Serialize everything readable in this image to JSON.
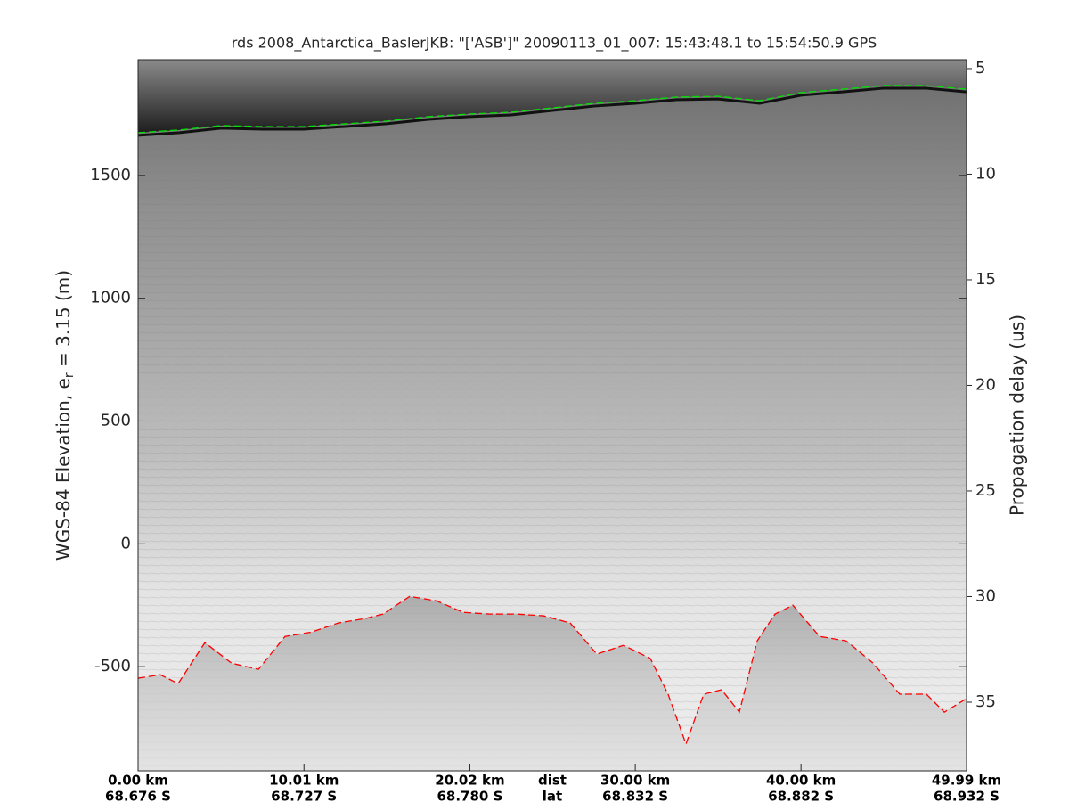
{
  "chart_data": {
    "type": "radargram",
    "title": "rds 2008_Antarctica_BaslerJKB: \"['ASB']\"  20090113_01_007: 15:43:48.1 to 15:54:50.9 GPS",
    "ylabel_parts": [
      "WGS-84 Elevation, e",
      "r",
      " = 3.15 (m)"
    ],
    "y2label": "Propagation delay (us)",
    "xlim": [
      0,
      49.99
    ],
    "xticks": [
      {
        "value": 0,
        "label": "0.00 km"
      },
      {
        "value": 10.01,
        "label": "10.01 km"
      },
      {
        "value": 20.02,
        "label": "20.02 km"
      },
      {
        "value": 30.0,
        "label": "30.00 km"
      },
      {
        "value": 40.0,
        "label": "40.00 km"
      },
      {
        "value": 49.99,
        "label": "49.99 km"
      }
    ],
    "xticklabels2": [
      "68.676 S",
      "68.727 S",
      "68.780 S",
      "68.832 S",
      "68.882 S",
      "68.932 S"
    ],
    "x_axis_labels": [
      "dist",
      "lat"
    ],
    "ylim": [
      -924,
      1971
    ],
    "yticks": [
      -500,
      0,
      500,
      1000,
      1500
    ],
    "y2lim": [
      38.25,
      4.58
    ],
    "y2ticks": [
      5,
      10,
      15,
      20,
      25,
      30,
      35
    ],
    "series": [
      {
        "color": "#00e000",
        "x": [
          0,
          2.5,
          5,
          7.5,
          10,
          12.5,
          15,
          17.5,
          20,
          22.5,
          25,
          27.5,
          30,
          32.5,
          35,
          37.5,
          40,
          42.5,
          45,
          47.5,
          49.99
        ],
        "values": [
          1674,
          1685,
          1703,
          1699,
          1699,
          1710,
          1721,
          1739,
          1750,
          1757,
          1775,
          1793,
          1804,
          1819,
          1822,
          1804,
          1837,
          1851,
          1866,
          1866,
          1851
        ]
      },
      {
        "color": "#ff0000",
        "x": [
          0,
          1.34,
          2.42,
          4.03,
          5.64,
          7.26,
          8.87,
          10.48,
          12.09,
          13.71,
          14.78,
          16.39,
          18.01,
          19.62,
          21.23,
          22.84,
          24.46,
          26.07,
          27.68,
          29.3,
          30.91,
          31.98,
          33.06,
          34.13,
          35.21,
          36.28,
          37.36,
          38.43,
          39.51,
          41.12,
          42.73,
          44.35,
          45.96,
          47.57,
          48.65,
          49.99
        ],
        "values": [
          -547,
          -533,
          -569,
          -402,
          -486,
          -511,
          -377,
          -359,
          -322,
          -304,
          -286,
          -214,
          -232,
          -279,
          -286,
          -286,
          -293,
          -322,
          -449,
          -413,
          -467,
          -612,
          -815,
          -612,
          -594,
          -685,
          -395,
          -286,
          -250,
          -377,
          -395,
          -486,
          -612,
          -612,
          -685,
          -630
        ]
      }
    ]
  }
}
